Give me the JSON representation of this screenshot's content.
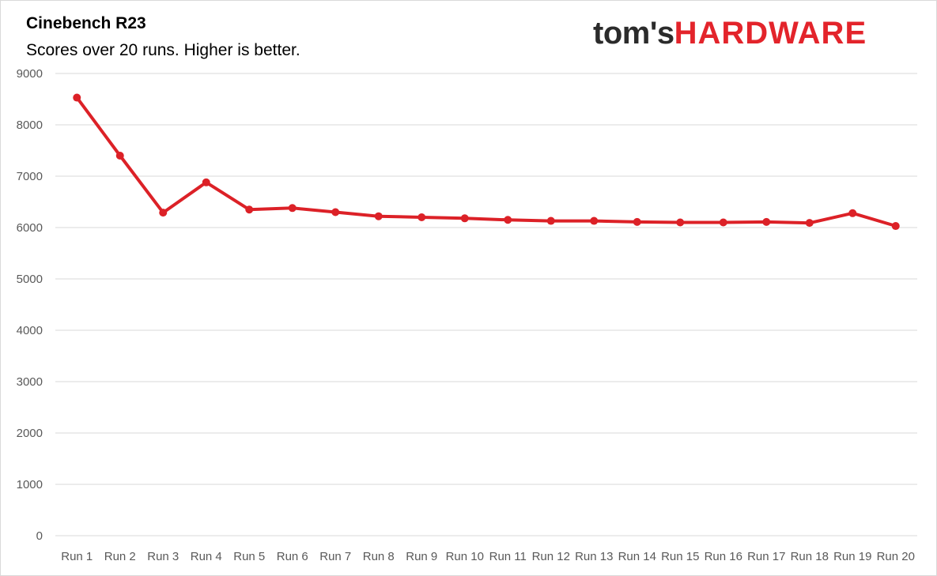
{
  "header": {
    "logo_part1": "tom's",
    "logo_part2": "HARDWARE"
  },
  "colors": {
    "series": "#dc2127",
    "grid": "#d9d9d9",
    "logo_dark": "#2b2b2b",
    "logo_red": "#e3242b"
  },
  "chart_data": {
    "type": "line",
    "title": "Cinebench R23",
    "subtitle": "Scores over 20 runs. Higher is better.",
    "xlabel": "",
    "ylabel": "",
    "ylim": [
      0,
      9000
    ],
    "yticks": [
      0,
      1000,
      2000,
      3000,
      4000,
      5000,
      6000,
      7000,
      8000,
      9000
    ],
    "grid": true,
    "legend": "none",
    "categories": [
      "Run 1",
      "Run 2",
      "Run 3",
      "Run 4",
      "Run 5",
      "Run 6",
      "Run 7",
      "Run 8",
      "Run 9",
      "Run 10",
      "Run 11",
      "Run 12",
      "Run 13",
      "Run 14",
      "Run 15",
      "Run 16",
      "Run 17",
      "Run 18",
      "Run 19",
      "Run 20"
    ],
    "series": [
      {
        "values": [
          8530,
          7400,
          6290,
          6880,
          6350,
          6380,
          6300,
          6220,
          6200,
          6180,
          6150,
          6130,
          6130,
          6110,
          6100,
          6100,
          6110,
          6090,
          6280,
          6030
        ]
      }
    ]
  }
}
